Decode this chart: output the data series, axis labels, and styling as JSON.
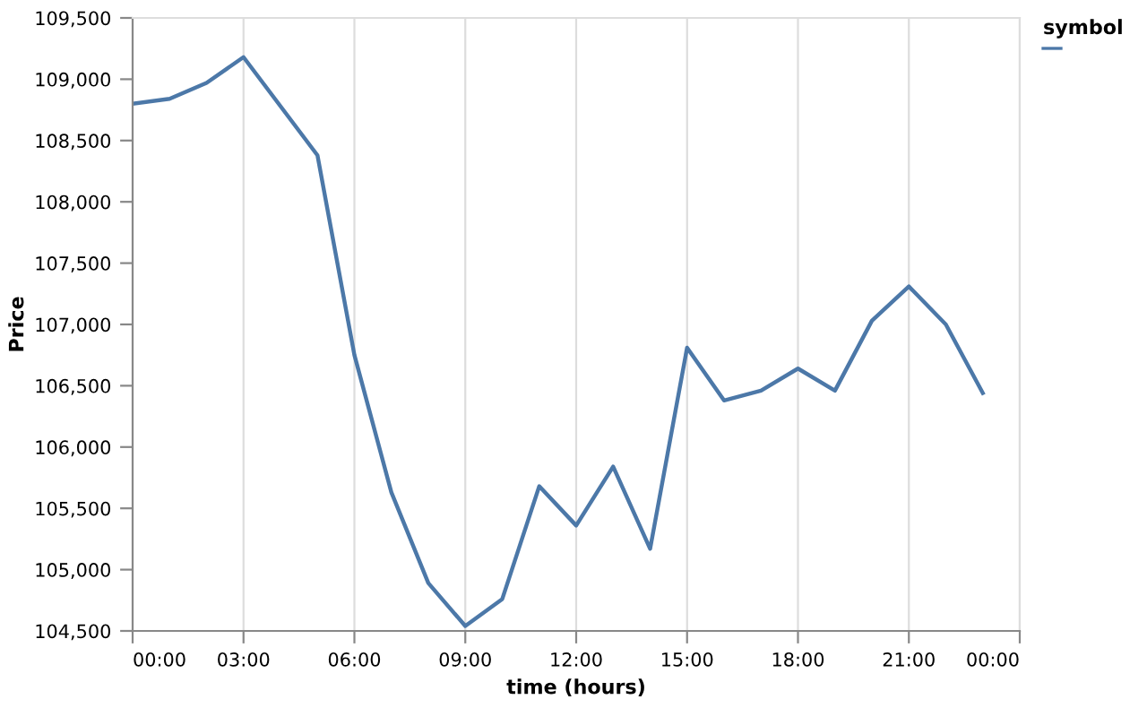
{
  "chart_data": {
    "type": "line",
    "xlabel": "time (hours)",
    "ylabel": "Price",
    "legend_title": "symbol",
    "grid": "x",
    "x": [
      0,
      1,
      2,
      3,
      4,
      5,
      6,
      7,
      8,
      9,
      10,
      11,
      12,
      13,
      14,
      15,
      16,
      17,
      18,
      19,
      20,
      21,
      22,
      23
    ],
    "series": [
      {
        "color": "#4c78a8",
        "values": [
          108800,
          108840,
          108970,
          109180,
          108780,
          108380,
          106750,
          105630,
          104890,
          104540,
          104760,
          105680,
          105360,
          105840,
          105170,
          106810,
          106380,
          106460,
          106640,
          106460,
          107030,
          107310,
          107000,
          106440
        ]
      }
    ],
    "xlim": [
      0,
      24
    ],
    "xticks": [
      {
        "value": 0,
        "label": "00:00"
      },
      {
        "value": 3,
        "label": "03:00"
      },
      {
        "value": 6,
        "label": "06:00"
      },
      {
        "value": 9,
        "label": "09:00"
      },
      {
        "value": 12,
        "label": "12:00"
      },
      {
        "value": 15,
        "label": "15:00"
      },
      {
        "value": 18,
        "label": "18:00"
      },
      {
        "value": 21,
        "label": "21:00"
      },
      {
        "value": 24,
        "label": "00:00"
      }
    ],
    "ylim": [
      104500,
      109500
    ],
    "yticks": [
      {
        "value": 104500,
        "label": "104,500"
      },
      {
        "value": 105000,
        "label": "105,000"
      },
      {
        "value": 105500,
        "label": "105,500"
      },
      {
        "value": 106000,
        "label": "106,000"
      },
      {
        "value": 106500,
        "label": "106,500"
      },
      {
        "value": 107000,
        "label": "107,000"
      },
      {
        "value": 107500,
        "label": "107,500"
      },
      {
        "value": 108000,
        "label": "108,000"
      },
      {
        "value": 108500,
        "label": "108,500"
      },
      {
        "value": 109000,
        "label": "109,000"
      },
      {
        "value": 109500,
        "label": "109,500"
      }
    ]
  }
}
